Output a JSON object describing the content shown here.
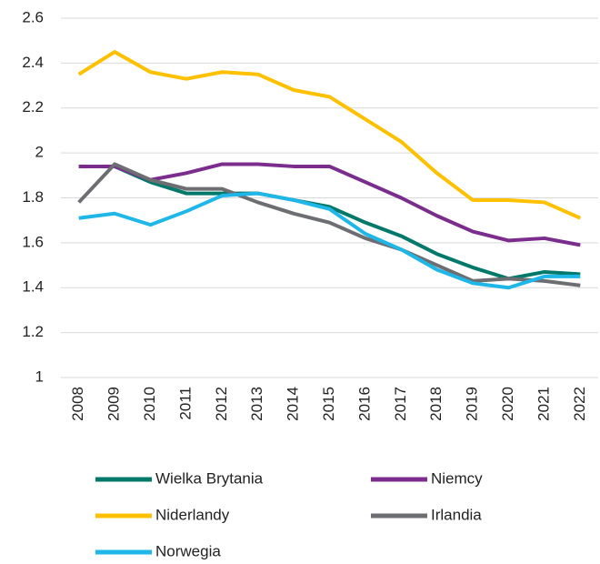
{
  "chart_data": {
    "type": "line",
    "categories": [
      "2008",
      "2009",
      "2010",
      "2011",
      "2012",
      "2013",
      "2014",
      "2015",
      "2016",
      "2017",
      "2018",
      "2019",
      "2020",
      "2021",
      "2022"
    ],
    "series": [
      {
        "name": "Wielka Brytania",
        "color": "#00786a",
        "values": [
          1.94,
          1.94,
          1.87,
          1.82,
          1.82,
          1.82,
          1.79,
          1.76,
          1.69,
          1.63,
          1.55,
          1.49,
          1.44,
          1.47,
          1.46
        ]
      },
      {
        "name": "Niemcy",
        "color": "#7b2d8e",
        "values": [
          1.94,
          1.94,
          1.88,
          1.91,
          1.95,
          1.95,
          1.94,
          1.94,
          1.87,
          1.8,
          1.72,
          1.65,
          1.61,
          1.62,
          1.59
        ]
      },
      {
        "name": "Niderlandy",
        "color": "#ffc000",
        "values": [
          2.35,
          2.45,
          2.36,
          2.33,
          2.36,
          2.35,
          2.28,
          2.25,
          2.15,
          2.05,
          1.91,
          1.79,
          1.79,
          1.78,
          1.71
        ]
      },
      {
        "name": "Irlandia",
        "color": "#6d6e71",
        "values": [
          1.78,
          1.95,
          1.88,
          1.84,
          1.84,
          1.78,
          1.73,
          1.69,
          1.62,
          1.57,
          1.5,
          1.43,
          1.44,
          1.43,
          1.41
        ]
      },
      {
        "name": "Norwegia",
        "color": "#1fb7e8",
        "values": [
          1.71,
          1.73,
          1.68,
          1.74,
          1.81,
          1.82,
          1.79,
          1.75,
          1.64,
          1.57,
          1.48,
          1.42,
          1.4,
          1.45,
          1.45
        ]
      }
    ],
    "ylim": [
      1,
      2.6
    ],
    "yticks": [
      1,
      1.2,
      1.4,
      1.6,
      1.8,
      2,
      2.2,
      2.4,
      2.6
    ],
    "grid": true
  }
}
